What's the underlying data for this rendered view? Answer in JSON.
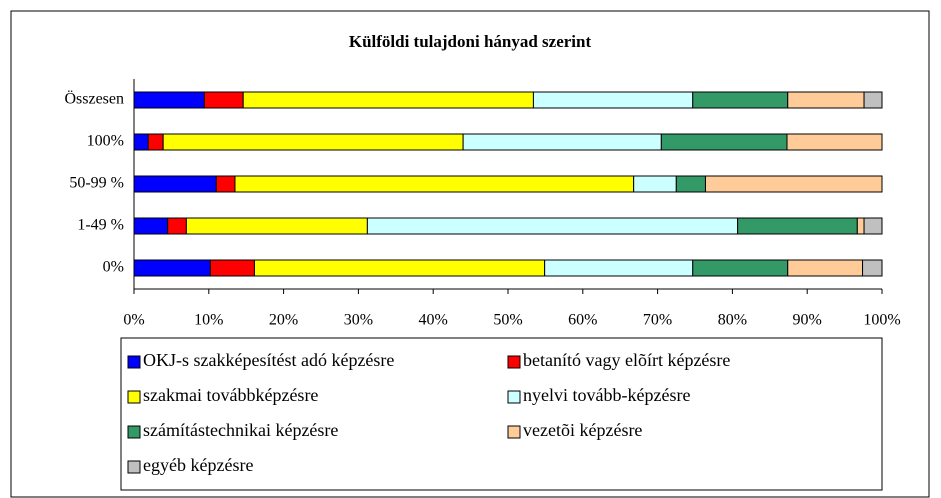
{
  "chart_data": {
    "type": "stacked-bar-horizontal",
    "title": "Külföldi tulajdoni hányad szerint",
    "categories": [
      "Összesen",
      "100%",
      "50-99 %",
      "1-49 %",
      "0%"
    ],
    "series": [
      {
        "name": "OKJ-s szakképesítést adó képzésre",
        "color": "#0000ff",
        "values": [
          9.4,
          1.9,
          11.0,
          4.5,
          10.2
        ]
      },
      {
        "name": "betanító vagy elõírt képzésre",
        "color": "#ff0000",
        "values": [
          5.2,
          2.0,
          2.5,
          2.5,
          5.9
        ]
      },
      {
        "name": "szakmai továbbképzésre",
        "color": "#ffff00",
        "values": [
          38.8,
          40.1,
          53.3,
          24.2,
          38.8
        ]
      },
      {
        "name": "nyelvi tovább-képzésre",
        "color": "#ccffff",
        "values": [
          21.3,
          26.5,
          5.7,
          49.5,
          19.8
        ]
      },
      {
        "name": "számítástechnikai képzésre",
        "color": "#339966",
        "values": [
          12.7,
          16.8,
          3.9,
          16.0,
          12.7
        ]
      },
      {
        "name": "vezetõi képzésre",
        "color": "#ffcc99",
        "values": [
          10.2,
          12.7,
          23.6,
          0.9,
          10.0
        ]
      },
      {
        "name": "egyéb képzésre",
        "color": "#c0c0c0",
        "values": [
          2.4,
          0,
          0,
          2.4,
          2.6
        ]
      }
    ],
    "xlim": [
      0,
      100
    ],
    "xticks": [
      {
        "value": 0,
        "label": "0%"
      },
      {
        "value": 10,
        "label": "10%"
      },
      {
        "value": 20,
        "label": "20%"
      },
      {
        "value": 30,
        "label": "30%"
      },
      {
        "value": 40,
        "label": "40%"
      },
      {
        "value": 50,
        "label": "50%"
      },
      {
        "value": 60,
        "label": "60%"
      },
      {
        "value": 70,
        "label": "70%"
      },
      {
        "value": 80,
        "label": "80%"
      },
      {
        "value": 90,
        "label": "90%"
      },
      {
        "value": 100,
        "label": "100%"
      }
    ],
    "grid": false,
    "legend": "bottom"
  }
}
